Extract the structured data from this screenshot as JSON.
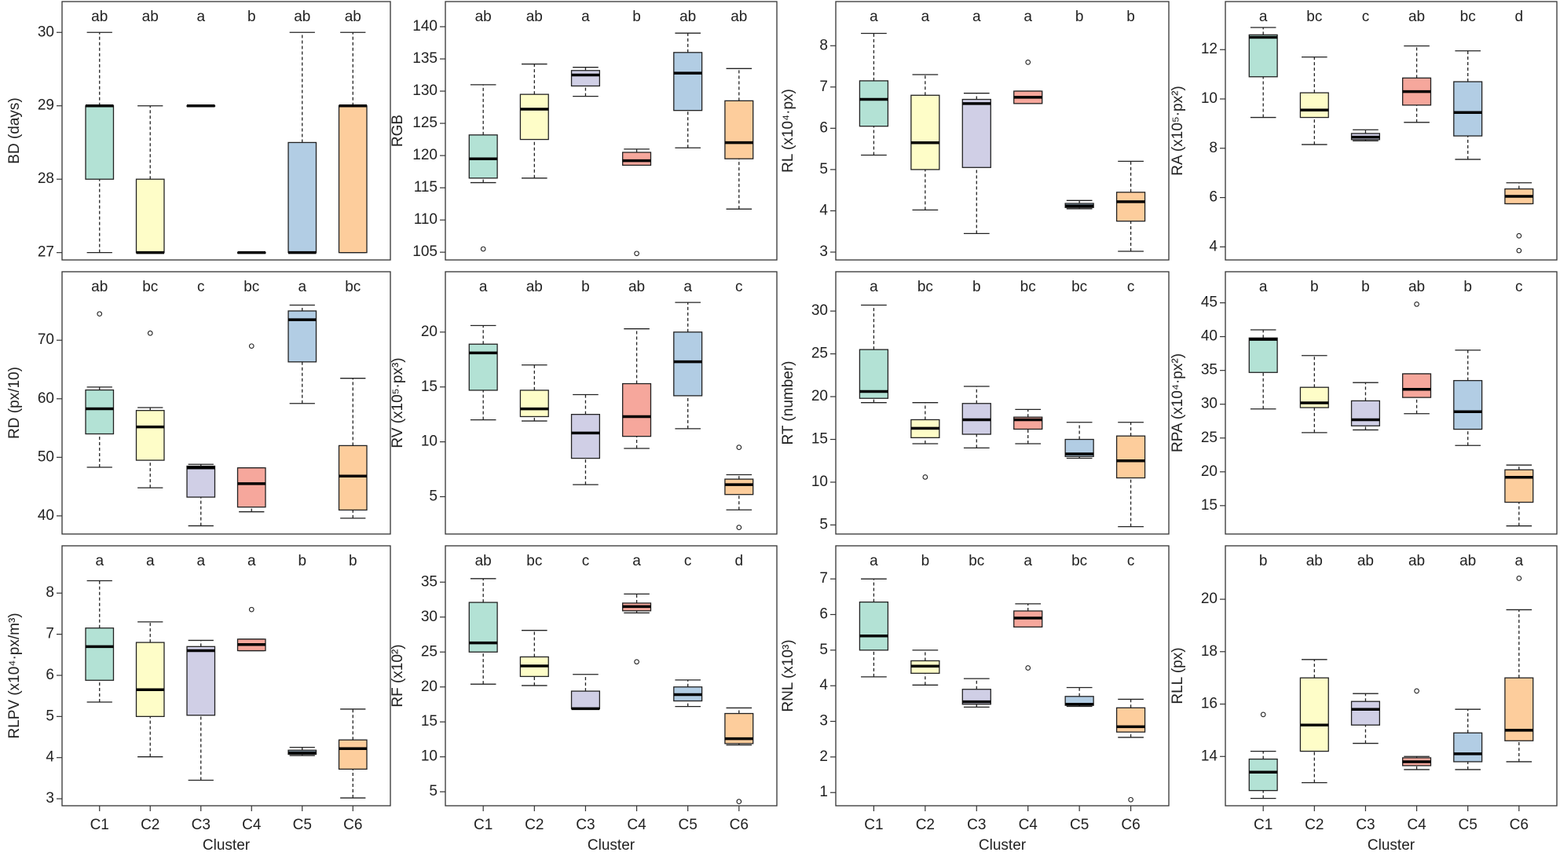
{
  "chart_data": [
    {
      "type": "box",
      "ylabel": "BD (days)",
      "ylim": [
        26.9,
        30.42
      ],
      "yticks": [
        27,
        28,
        29,
        30
      ],
      "letters": [
        "ab",
        "ab",
        "a",
        "b",
        "ab",
        "ab"
      ],
      "whisker_low": [
        27,
        27,
        29,
        27,
        27,
        27
      ],
      "q1": [
        28,
        27,
        29,
        27,
        27,
        27
      ],
      "median": [
        29,
        27,
        29,
        27,
        27,
        29
      ],
      "q3": [
        29,
        28,
        29,
        27,
        28.5,
        29
      ],
      "whisker_high": [
        30,
        29,
        29,
        27,
        30,
        30
      ],
      "outliers": [
        [],
        [],
        [],
        [],
        [],
        []
      ],
      "colors": [
        "#b3e2d5",
        "#fefdc8",
        "#d0cfe6",
        "#f6a79c",
        "#b2cde4",
        "#fdcd9c"
      ]
    },
    {
      "type": "box",
      "ylabel": "RGB",
      "ylim": [
        103.8,
        143.9
      ],
      "yticks": [
        105,
        110,
        115,
        120,
        125,
        130,
        135,
        140
      ],
      "letters": [
        "ab",
        "ab",
        "a",
        "b",
        "ab",
        "ab"
      ],
      "whisker_low": [
        115.8,
        116.5,
        129.2,
        118.5,
        121.2,
        111.7
      ],
      "q1": [
        116.5,
        122.5,
        130.8,
        118.5,
        127,
        119.5
      ],
      "median": [
        119.5,
        127.2,
        132.5,
        119.2,
        132.8,
        122
      ],
      "q3": [
        123.2,
        129.5,
        133.2,
        120.5,
        136,
        128.5
      ],
      "whisker_high": [
        131,
        134.2,
        133.7,
        121,
        139,
        133.5
      ],
      "outliers": [
        [
          105.5
        ],
        [],
        [],
        [
          104.8
        ],
        [],
        []
      ],
      "colors": [
        "#b3e2d5",
        "#fefdc8",
        "#d0cfe6",
        "#f6a79c",
        "#b2cde4",
        "#fdcd9c"
      ]
    },
    {
      "type": "box",
      "ylabel": "RL (x10⁴·px)",
      "ylim": [
        2.81,
        9.07
      ],
      "yticks": [
        3,
        4,
        5,
        6,
        7,
        8
      ],
      "letters": [
        "a",
        "a",
        "a",
        "a",
        "b",
        "b"
      ],
      "whisker_low": [
        5.35,
        4.02,
        3.45,
        6.6,
        4.05,
        3.02
      ],
      "q1": [
        6.05,
        5.0,
        5.05,
        6.6,
        4.08,
        3.75
      ],
      "median": [
        6.7,
        5.65,
        6.6,
        6.75,
        4.12,
        4.22
      ],
      "q3": [
        7.15,
        6.8,
        6.7,
        6.9,
        4.18,
        4.45
      ],
      "whisker_high": [
        8.3,
        7.3,
        6.85,
        6.9,
        4.25,
        5.2
      ],
      "outliers": [
        [],
        [],
        [],
        [
          7.6
        ],
        [],
        []
      ],
      "colors": [
        "#b3e2d5",
        "#fefdc8",
        "#d0cfe6",
        "#f6a79c",
        "#b2cde4",
        "#fdcd9c"
      ]
    },
    {
      "type": "box",
      "ylabel": "RA (x10⁵·px²)",
      "ylim": [
        3.47,
        13.95
      ],
      "yticks": [
        4,
        6,
        8,
        10,
        12
      ],
      "letters": [
        "a",
        "bc",
        "c",
        "ab",
        "bc",
        "d"
      ],
      "whisker_low": [
        9.25,
        8.15,
        8.3,
        9.05,
        7.55,
        5.75
      ],
      "q1": [
        10.9,
        9.25,
        8.35,
        9.75,
        8.5,
        5.75
      ],
      "median": [
        12.5,
        9.55,
        8.45,
        10.3,
        9.45,
        6.05
      ],
      "q3": [
        12.6,
        10.25,
        8.6,
        10.85,
        10.7,
        6.35
      ],
      "whisker_high": [
        12.9,
        11.7,
        8.75,
        12.15,
        11.95,
        6.6
      ],
      "outliers": [
        [],
        [],
        [],
        [],
        [],
        [
          4.45,
          3.85
        ]
      ],
      "colors": [
        "#b3e2d5",
        "#fefdc8",
        "#d0cfe6",
        "#f6a79c",
        "#b2cde4",
        "#fdcd9c"
      ]
    },
    {
      "type": "box",
      "ylabel": "RD (px/10)",
      "ylim": [
        36.9,
        81.7
      ],
      "yticks": [
        40,
        50,
        60,
        70
      ],
      "letters": [
        "ab",
        "bc",
        "c",
        "bc",
        "a",
        "bc"
      ],
      "whisker_low": [
        48.3,
        44.8,
        38.3,
        40.7,
        59.2,
        39.6
      ],
      "q1": [
        54,
        49.5,
        43.2,
        41.5,
        66.3,
        41
      ],
      "median": [
        58.3,
        55.2,
        48.2,
        45.5,
        73.5,
        46.8
      ],
      "q3": [
        61.5,
        58,
        48.5,
        48.2,
        75,
        52
      ],
      "whisker_high": [
        62,
        58.5,
        48.8,
        48.2,
        76,
        63.5
      ],
      "outliers": [
        [
          74.5
        ],
        [
          71.2
        ],
        [],
        [
          69
        ],
        [],
        []
      ],
      "colors": [
        "#b3e2d5",
        "#fefdc8",
        "#d0cfe6",
        "#f6a79c",
        "#b2cde4",
        "#fdcd9c"
      ]
    },
    {
      "type": "box",
      "ylabel": "RV (x10⁵·px³)",
      "ylim": [
        1.6,
        25.5
      ],
      "yticks": [
        5,
        10,
        15,
        20
      ],
      "letters": [
        "a",
        "ab",
        "b",
        "ab",
        "a",
        "c"
      ],
      "whisker_low": [
        12,
        11.9,
        6.1,
        9.4,
        11.2,
        3.8
      ],
      "q1": [
        14.7,
        12.3,
        8.5,
        10.5,
        14.2,
        5.2
      ],
      "median": [
        18.1,
        13,
        10.8,
        12.3,
        17.3,
        6.1
      ],
      "q3": [
        18.9,
        14.7,
        12.5,
        15.3,
        20,
        6.6
      ],
      "whisker_high": [
        20.6,
        17,
        14.3,
        20.3,
        22.7,
        7
      ],
      "outliers": [
        [],
        [],
        [],
        [],
        [],
        [
          9.5,
          2.2
        ]
      ],
      "colors": [
        "#b3e2d5",
        "#fefdc8",
        "#d0cfe6",
        "#f6a79c",
        "#b2cde4",
        "#fdcd9c"
      ]
    },
    {
      "type": "box",
      "ylabel": "RT (number)",
      "ylim": [
        3.94,
        34.6
      ],
      "yticks": [
        5,
        10,
        15,
        20,
        25,
        30
      ],
      "letters": [
        "a",
        "bc",
        "b",
        "bc",
        "bc",
        "c"
      ],
      "whisker_low": [
        19.3,
        14.5,
        14,
        14.5,
        12.8,
        4.8
      ],
      "q1": [
        19.8,
        15.2,
        15.6,
        16.2,
        13,
        10.5
      ],
      "median": [
        20.6,
        16.3,
        17.3,
        17.3,
        13.3,
        12.5
      ],
      "q3": [
        25.5,
        17.3,
        19.2,
        17.6,
        15,
        15.4
      ],
      "whisker_high": [
        30.7,
        19.3,
        21.2,
        18.5,
        17,
        17
      ],
      "outliers": [
        [],
        [
          10.6
        ],
        [],
        [],
        [],
        []
      ],
      "colors": [
        "#b3e2d5",
        "#fefdc8",
        "#d0cfe6",
        "#f6a79c",
        "#b2cde4",
        "#fdcd9c"
      ]
    },
    {
      "type": "box",
      "ylabel": "RPA (x10⁴·px²)",
      "ylim": [
        10.8,
        49.6
      ],
      "yticks": [
        15,
        20,
        25,
        30,
        35,
        40,
        45
      ],
      "letters": [
        "a",
        "b",
        "b",
        "ab",
        "b",
        "c"
      ],
      "whisker_low": [
        29.3,
        25.8,
        26.2,
        28.6,
        23.9,
        12
      ],
      "q1": [
        34.7,
        29.5,
        26.8,
        31,
        26.3,
        15.5
      ],
      "median": [
        39.6,
        30.2,
        27.7,
        32.2,
        28.9,
        19.2
      ],
      "q3": [
        39.8,
        32.5,
        30.5,
        34.5,
        33.5,
        20.3
      ],
      "whisker_high": [
        41,
        37.2,
        33.2,
        34.5,
        38,
        21
      ],
      "outliers": [
        [],
        [],
        [],
        [
          44.8
        ],
        [],
        []
      ],
      "colors": [
        "#b3e2d5",
        "#fefdc8",
        "#d0cfe6",
        "#f6a79c",
        "#b2cde4",
        "#fdcd9c"
      ]
    },
    {
      "type": "box",
      "ylabel": "RLPV (x10⁴·px/m³)",
      "ylim": [
        2.83,
        9.15
      ],
      "yticks": [
        3,
        4,
        5,
        6,
        7,
        8
      ],
      "letters": [
        "a",
        "a",
        "a",
        "a",
        "b",
        "b"
      ],
      "whisker_low": [
        5.35,
        4.02,
        3.45,
        6.6,
        4.05,
        3.02
      ],
      "q1": [
        5.88,
        5.0,
        5.03,
        6.6,
        4.08,
        3.72
      ],
      "median": [
        6.7,
        5.65,
        6.6,
        6.75,
        4.12,
        4.22
      ],
      "q3": [
        7.15,
        6.8,
        6.7,
        6.88,
        4.18,
        4.43
      ],
      "whisker_high": [
        8.3,
        7.3,
        6.85,
        6.88,
        4.25,
        5.18
      ],
      "outliers": [
        [],
        [],
        [],
        [
          7.6
        ],
        [],
        []
      ],
      "colors": [
        "#b3e2d5",
        "#fefdc8",
        "#d0cfe6",
        "#f6a79c",
        "#b2cde4",
        "#fdcd9c"
      ],
      "categories": [
        "C1",
        "C2",
        "C3",
        "C4",
        "C5",
        "C6"
      ],
      "xlabel": "Cluster"
    },
    {
      "type": "box",
      "ylabel": "RF (x10²)",
      "ylim": [
        3.0,
        40.2
      ],
      "yticks": [
        5,
        10,
        15,
        20,
        25,
        30,
        35
      ],
      "letters": [
        "ab",
        "bc",
        "c",
        "a",
        "c",
        "d"
      ],
      "whisker_low": [
        20.4,
        20.2,
        16.9,
        30.6,
        17.2,
        11.7
      ],
      "q1": [
        25,
        21.5,
        16.9,
        30.9,
        18,
        11.9
      ],
      "median": [
        26.3,
        23,
        16.9,
        31.5,
        18.9,
        12.6
      ],
      "q3": [
        32.1,
        24.3,
        19.4,
        32,
        20,
        16.2
      ],
      "whisker_high": [
        35.5,
        28.1,
        21.8,
        33.3,
        21,
        17
      ],
      "outliers": [
        [],
        [],
        [],
        [
          23.6
        ],
        [],
        [
          3.6
        ]
      ],
      "colors": [
        "#b3e2d5",
        "#fefdc8",
        "#d0cfe6",
        "#f6a79c",
        "#b2cde4",
        "#fdcd9c"
      ],
      "categories": [
        "C1",
        "C2",
        "C3",
        "C4",
        "C5",
        "C6"
      ],
      "xlabel": "Cluster"
    },
    {
      "type": "box",
      "ylabel": "RNL (x10³)",
      "ylim": [
        0.63,
        7.93
      ],
      "yticks": [
        1,
        2,
        3,
        4,
        5,
        6,
        7
      ],
      "letters": [
        "a",
        "b",
        "bc",
        "a",
        "bc",
        "c"
      ],
      "whisker_low": [
        4.25,
        4.02,
        3.4,
        5.65,
        3.42,
        2.55
      ],
      "q1": [
        5,
        4.35,
        3.48,
        5.65,
        3.45,
        2.7
      ],
      "median": [
        5.4,
        4.55,
        3.55,
        5.9,
        3.48,
        2.85
      ],
      "q3": [
        6.35,
        4.7,
        3.9,
        6.1,
        3.7,
        3.38
      ],
      "whisker_high": [
        7,
        5,
        4.2,
        6.3,
        3.95,
        3.62
      ],
      "outliers": [
        [],
        [],
        [],
        [
          4.5
        ],
        [],
        [
          0.8
        ]
      ],
      "colors": [
        "#b3e2d5",
        "#fefdc8",
        "#d0cfe6",
        "#f6a79c",
        "#b2cde4",
        "#fdcd9c"
      ],
      "categories": [
        "C1",
        "C2",
        "C3",
        "C4",
        "C5",
        "C6"
      ],
      "xlabel": "Cluster"
    },
    {
      "type": "box",
      "ylabel": "RLL (px)",
      "ylim": [
        12.12,
        22.04
      ],
      "yticks": [
        14,
        16,
        18,
        20
      ],
      "letters": [
        "b",
        "ab",
        "ab",
        "ab",
        "ab",
        "a"
      ],
      "whisker_low": [
        12.4,
        13,
        14.5,
        13.5,
        13.5,
        13.8
      ],
      "q1": [
        12.7,
        14.2,
        15.2,
        13.65,
        13.8,
        14.6
      ],
      "median": [
        13.4,
        15.2,
        15.8,
        13.8,
        14.1,
        15
      ],
      "q3": [
        13.9,
        17,
        16.1,
        13.95,
        14.9,
        17
      ],
      "whisker_high": [
        14.2,
        17.7,
        16.4,
        14,
        15.8,
        19.6
      ],
      "outliers": [
        [
          15.6
        ],
        [],
        [],
        [
          16.5
        ],
        [],
        [
          20.8
        ]
      ],
      "colors": [
        "#b3e2d5",
        "#fefdc8",
        "#d0cfe6",
        "#f6a79c",
        "#b2cde4",
        "#fdcd9c"
      ],
      "categories": [
        "C1",
        "C2",
        "C3",
        "C4",
        "C5",
        "C6"
      ],
      "xlabel": "Cluster"
    }
  ]
}
